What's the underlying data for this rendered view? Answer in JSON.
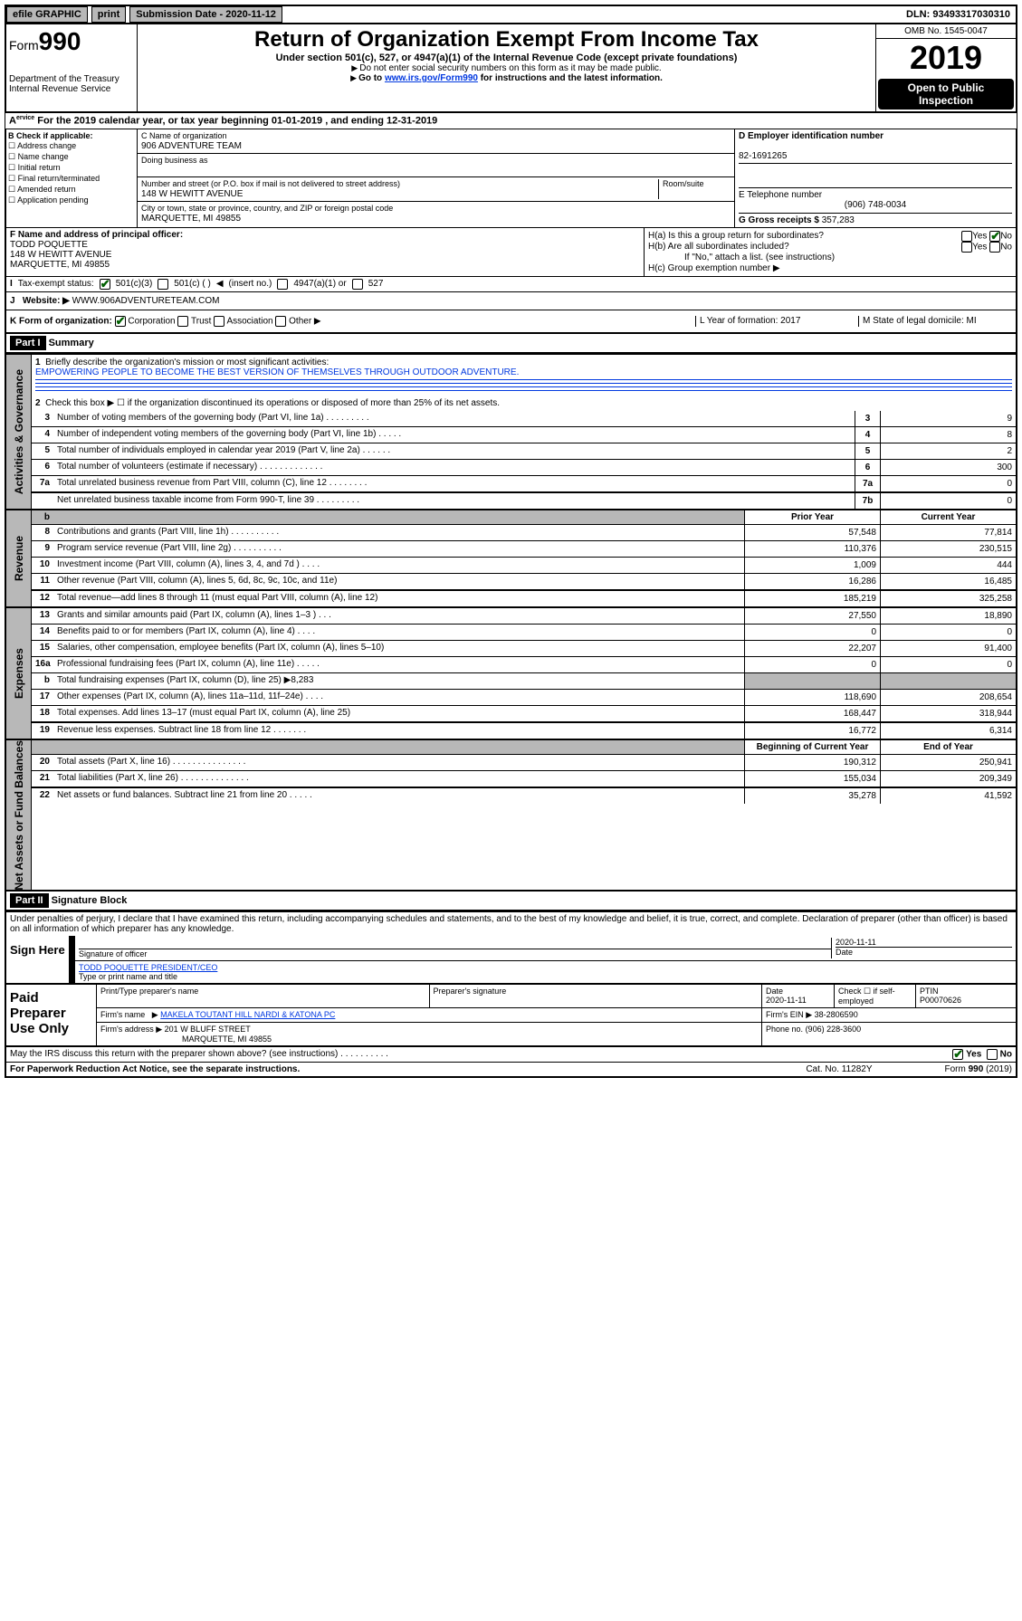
{
  "topbar": {
    "efile": "efile GRAPHIC",
    "print": "print",
    "sub_label": "Submission Date - 2020-11-12",
    "dln": "DLN: 93493317030310"
  },
  "header": {
    "form": "Form",
    "form_no": "990",
    "dept": "Department of the Treasury Internal Revenue Service",
    "title": "Return of Organization Exempt From Income Tax",
    "sub1": "Under section 501(c), 527, or 4947(a)(1) of the Internal Revenue Code (except private foundations)",
    "sub2": "Do not enter social security numbers on this form as it may be made public.",
    "sub3_pre": "Go to ",
    "sub3_link": "www.irs.gov/Form990",
    "sub3_post": " for instructions and the latest information.",
    "omb": "OMB No. 1545-0047",
    "year": "2019",
    "open": "Open to Public Inspection"
  },
  "period": "For the 2019 calendar year, or tax year beginning 01-01-2019   , and ending 12-31-2019",
  "box_b": {
    "label": "B Check if applicable:",
    "opts": [
      "Address change",
      "Name change",
      "Initial return",
      "Final return/terminated",
      "Amended return",
      "Application pending"
    ]
  },
  "box_c": {
    "name_lab": "C Name of organization",
    "name": "906 ADVENTURE TEAM",
    "dba_lab": "Doing business as",
    "addr_lab": "Number and street (or P.O. box if mail is not delivered to street address)",
    "addr": "148 W HEWITT AVENUE",
    "room_lab": "Room/suite",
    "city_lab": "City or town, state or province, country, and ZIP or foreign postal code",
    "city": "MARQUETTE, MI  49855"
  },
  "box_d": {
    "eid_lab": "D Employer identification number",
    "eid": "82-1691265",
    "tel_lab": "E Telephone number",
    "tel": "(906) 748-0034",
    "g_lab": "G Gross receipts $",
    "g": "357,283"
  },
  "box_f": {
    "lab": "F Name and address of principal officer:",
    "name": "TODD POQUETTE",
    "addr1": "148 W HEWITT AVENUE",
    "addr2": "MARQUETTE, MI  49855"
  },
  "box_h": {
    "a": "H(a)  Is this a group return for subordinates?",
    "b": "H(b)  Are all subordinates included?",
    "b_note": "If \"No,\" attach a list. (see instructions)",
    "c": "H(c)  Group exemption number"
  },
  "box_i": {
    "lab": "Tax-exempt status:",
    "o1": "501(c)(3)",
    "o2": "501(c) (   )",
    "o2s": "(insert no.)",
    "o3": "4947(a)(1) or",
    "o4": "527"
  },
  "box_j": {
    "lab": "Website:",
    "val": "WWW.906ADVENTURETEAM.COM"
  },
  "box_k": {
    "lab": "K Form of organization:",
    "o1": "Corporation",
    "o2": "Trust",
    "o3": "Association",
    "o4": "Other",
    "l": "L Year of formation: 2017",
    "m": "M State of legal domicile: MI"
  },
  "part1": {
    "hdr": "Part I",
    "title": "Summary"
  },
  "gov": {
    "q1": "Briefly describe the organization's mission or most significant activities:",
    "mission": "EMPOWERING PEOPLE TO BECOME THE BEST VERSION OF THEMSELVES THROUGH OUTDOOR ADVENTURE.",
    "q2": "Check this box ▶ ☐  if the organization discontinued its operations or disposed of more than 25% of its net assets.",
    "rows": [
      {
        "n": "3",
        "d": "Number of voting members of the governing body (Part VI, line 1a)  .   .   .   .   .   .   .   .   .",
        "ln": "3",
        "v": "9"
      },
      {
        "n": "4",
        "d": "Number of independent voting members of the governing body (Part VI, line 1b)  .   .   .   .   .",
        "ln": "4",
        "v": "8"
      },
      {
        "n": "5",
        "d": "Total number of individuals employed in calendar year 2019 (Part V, line 2a)  .   .   .   .   .   .",
        "ln": "5",
        "v": "2"
      },
      {
        "n": "6",
        "d": "Total number of volunteers (estimate if necessary)  .   .   .   .   .   .   .   .   .   .   .   .   .",
        "ln": "6",
        "v": "300"
      },
      {
        "n": "7a",
        "d": "Total unrelated business revenue from Part VIII, column (C), line 12  .   .   .   .   .   .   .   .",
        "ln": "7a",
        "v": "0"
      },
      {
        "n": "",
        "d": "Net unrelated business taxable income from Form 990-T, line 39  .   .   .   .   .   .   .   .   .",
        "ln": "7b",
        "v": "0"
      }
    ]
  },
  "rev": {
    "head1": "Prior Year",
    "head2": "Current Year",
    "rows": [
      {
        "n": "8",
        "d": "Contributions and grants (Part VIII, line 1h)  .   .   .   .   .   .   .   .   .   .",
        "p": "57,548",
        "c": "77,814"
      },
      {
        "n": "9",
        "d": "Program service revenue (Part VIII, line 2g)  .   .   .   .   .   .   .   .   .   .",
        "p": "110,376",
        "c": "230,515"
      },
      {
        "n": "10",
        "d": "Investment income (Part VIII, column (A), lines 3, 4, and 7d )  .   .   .   .",
        "p": "1,009",
        "c": "444"
      },
      {
        "n": "11",
        "d": "Other revenue (Part VIII, column (A), lines 5, 6d, 8c, 9c, 10c, and 11e)",
        "p": "16,286",
        "c": "16,485"
      },
      {
        "n": "12",
        "d": "Total revenue—add lines 8 through 11 (must equal Part VIII, column (A), line 12)",
        "p": "185,219",
        "c": "325,258"
      }
    ]
  },
  "exp": {
    "rows": [
      {
        "n": "13",
        "d": "Grants and similar amounts paid (Part IX, column (A), lines 1–3 )  .   .   .",
        "p": "27,550",
        "c": "18,890"
      },
      {
        "n": "14",
        "d": "Benefits paid to or for members (Part IX, column (A), line 4)  .   .   .   .",
        "p": "0",
        "c": "0"
      },
      {
        "n": "15",
        "d": "Salaries, other compensation, employee benefits (Part IX, column (A), lines 5–10)",
        "p": "22,207",
        "c": "91,400"
      },
      {
        "n": "16a",
        "d": "Professional fundraising fees (Part IX, column (A), line 11e)  .   .   .   .   .",
        "p": "0",
        "c": "0"
      },
      {
        "n": "b",
        "d": "Total fundraising expenses (Part IX, column (D), line 25) ▶8,283",
        "p": "",
        "c": "",
        "shade": true
      },
      {
        "n": "17",
        "d": "Other expenses (Part IX, column (A), lines 11a–11d, 11f–24e)  .   .   .   .",
        "p": "118,690",
        "c": "208,654"
      },
      {
        "n": "18",
        "d": "Total expenses. Add lines 13–17 (must equal Part IX, column (A), line 25)",
        "p": "168,447",
        "c": "318,944"
      },
      {
        "n": "19",
        "d": "Revenue less expenses. Subtract line 18 from line 12  .   .   .   .   .   .   .",
        "p": "16,772",
        "c": "6,314"
      }
    ]
  },
  "net": {
    "head1": "Beginning of Current Year",
    "head2": "End of Year",
    "rows": [
      {
        "n": "20",
        "d": "Total assets (Part X, line 16)  .   .   .   .   .   .   .   .   .   .   .   .   .   .   .",
        "p": "190,312",
        "c": "250,941"
      },
      {
        "n": "21",
        "d": "Total liabilities (Part X, line 26)  .   .   .   .   .   .   .   .   .   .   .   .   .   .",
        "p": "155,034",
        "c": "209,349"
      },
      {
        "n": "22",
        "d": "Net assets or fund balances. Subtract line 21 from line 20  .   .   .   .   .",
        "p": "35,278",
        "c": "41,592"
      }
    ]
  },
  "part2": {
    "hdr": "Part II",
    "title": "Signature Block"
  },
  "decl": "Under penalties of perjury, I declare that I have examined this return, including accompanying schedules and statements, and to the best of my knowledge and belief, it is true, correct, and complete. Declaration of preparer (other than officer) is based on all information of which preparer has any knowledge.",
  "sign": {
    "lab": "Sign Here",
    "date": "2020-11-11",
    "sig_lab": "Signature of officer",
    "date_lab": "Date",
    "name": "TODD POQUETTE PRESIDENT/CEO",
    "name_lab": "Type or print name and title"
  },
  "paid": {
    "lab": "Paid Preparer Use Only",
    "h1": "Print/Type preparer's name",
    "h2": "Preparer's signature",
    "h3": "Date",
    "h3v": "2020-11-11",
    "h4": "Check ☐ if self-employed",
    "h5": "PTIN",
    "h5v": "P00070626",
    "firm_lab": "Firm's name",
    "firm": "MAKELA TOUTANT HILL NARDI & KATONA PC",
    "ein_lab": "Firm's EIN",
    "ein": "38-2806590",
    "addr_lab": "Firm's address",
    "addr1": "201 W BLUFF STREET",
    "addr2": "MARQUETTE, MI  49855",
    "ph_lab": "Phone no.",
    "ph": "(906) 228-3600"
  },
  "may": "May the IRS discuss this return with the preparer shown above? (see instructions)   .   .   .   .   .   .   .   .   .   .",
  "foot": {
    "l": "For Paperwork Reduction Act Notice, see the separate instructions.",
    "m": "Cat. No. 11282Y",
    "r": "Form 990 (2019)"
  },
  "sides": {
    "gov": "Activities & Governance",
    "rev": "Revenue",
    "exp": "Expenses",
    "net": "Net Assets or Fund Balances"
  }
}
